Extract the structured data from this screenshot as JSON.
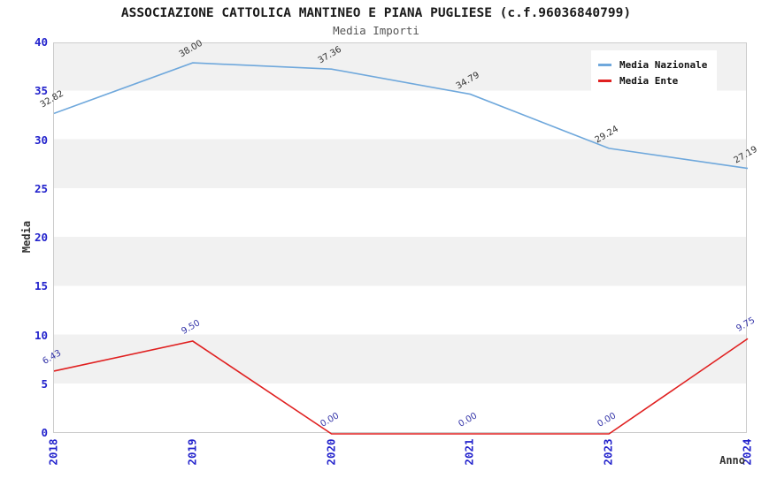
{
  "chart_data": {
    "type": "line",
    "title": "ASSOCIAZIONE CATTOLICA MANTINEO E PIANA PUGLIESE (c.f.96036840799)",
    "subtitle": "Media Importi",
    "xlabel": "Anno",
    "ylabel": "Media",
    "categories": [
      "2018",
      "2019",
      "2020",
      "2021",
      "2023",
      "2024"
    ],
    "series": [
      {
        "name": "Media Nazionale",
        "color": "#6fa8dc",
        "label_color": "#333333",
        "values": [
          32.82,
          38.0,
          37.36,
          34.79,
          29.24,
          27.19
        ]
      },
      {
        "name": "Media Ente",
        "color": "#e02020",
        "label_color": "#3434a8",
        "values": [
          6.43,
          9.5,
          0.0,
          0.0,
          0.0,
          9.75
        ]
      }
    ],
    "ylim": [
      0,
      40
    ],
    "ytick_step": 5,
    "ytick_labels": [
      "0",
      "5",
      "10",
      "15",
      "20",
      "25",
      "30",
      "35",
      "40"
    ],
    "legend_position": "top-right",
    "grid": "horizontal-bands",
    "band_color": "#f1f1f1",
    "axis_tick_color": "#2222cc",
    "value_label_decimals": 2
  }
}
